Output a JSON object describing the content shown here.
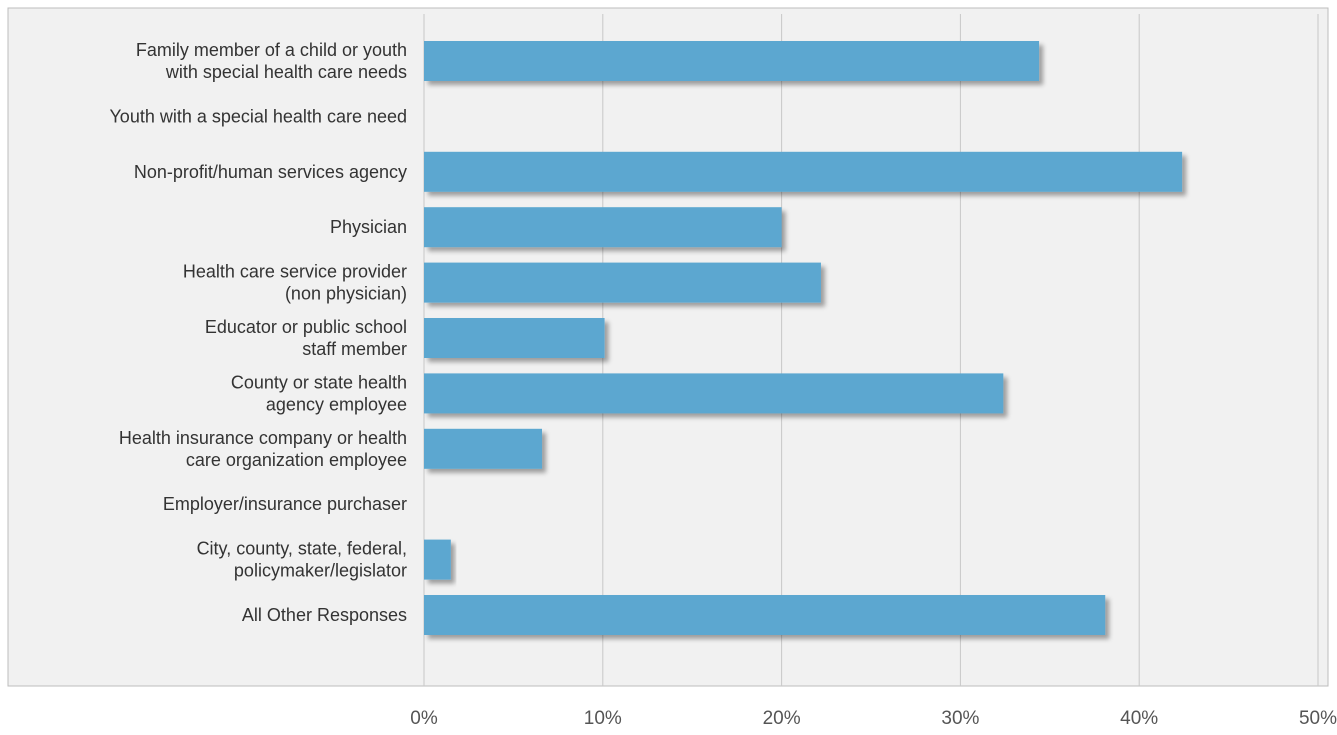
{
  "chart_data": {
    "type": "bar",
    "orientation": "horizontal",
    "categories": [
      [
        "Family member of a child or youth",
        "with special health care needs"
      ],
      [
        "Youth with a special health care need"
      ],
      [
        "Non-profit/human services agency"
      ],
      [
        "Physician"
      ],
      [
        "Health care service provider",
        "(non physician)"
      ],
      [
        "Educator or public school",
        "staff member"
      ],
      [
        "County or state health",
        "agency employee"
      ],
      [
        "Health insurance company or health",
        "care organization employee"
      ],
      [
        "Employer/insurance purchaser"
      ],
      [
        "City, county, state, federal,",
        "policymaker/legislator"
      ],
      [
        "All Other Responses"
      ]
    ],
    "values": [
      34.4,
      0,
      42.4,
      20.0,
      22.2,
      10.1,
      32.4,
      6.6,
      0,
      1.5,
      38.1
    ],
    "xlim": [
      0,
      50
    ],
    "ticks": [
      "0%",
      "10%",
      "20%",
      "30%",
      "40%",
      "50%"
    ],
    "grid": true,
    "colors": {
      "bar": "#5ba7d0",
      "plot_bg": "#f1f1f1",
      "grid": "#c8c8c8",
      "frame": "#bdbdbd"
    }
  }
}
